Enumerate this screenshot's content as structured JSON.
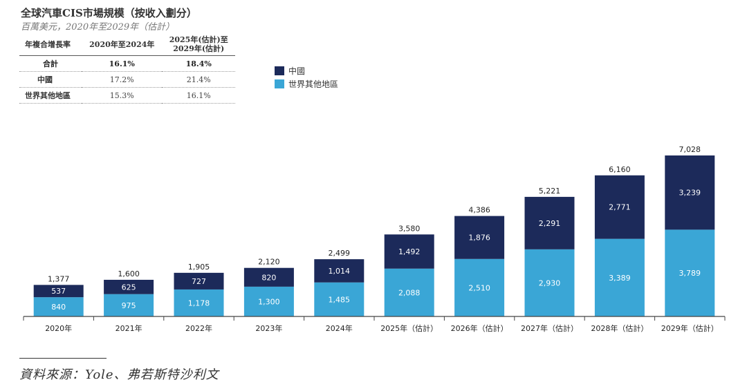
{
  "title": "全球汽車CIS市場規模（按收入劃分）",
  "subtitle": "百萬美元，2020年至2029年（估計）",
  "cagr_table": {
    "headers": [
      "年複合增長率",
      "2020年至2024年",
      "2025年(估計)至\n2029年(估計)"
    ],
    "rows": [
      {
        "label": "合計",
        "p1": "16.1%",
        "p2": "18.4%"
      },
      {
        "label": "中國",
        "p1": "17.2%",
        "p2": "21.4%"
      },
      {
        "label": "世界其他地區",
        "p1": "15.3%",
        "p2": "16.1%"
      }
    ]
  },
  "legend": [
    {
      "label": "中國",
      "color": "#1c2a5a"
    },
    {
      "label": "世界其他地區",
      "color": "#3aa6d6"
    }
  ],
  "source": "資料來源：Yole、弗若斯特沙利文",
  "chart_data": {
    "type": "bar",
    "stacked": true,
    "categories": [
      "2020年",
      "2021年",
      "2022年",
      "2023年",
      "2024年",
      "2025年（估計）",
      "2026年（估計）",
      "2027年（估計）",
      "2028年（估計）",
      "2029年（估計）"
    ],
    "series": [
      {
        "name": "世界其他地區",
        "color": "#3aa6d6",
        "values": [
          840,
          975,
          1178,
          1300,
          1485,
          2088,
          2510,
          2930,
          3389,
          3789
        ],
        "labels": [
          "840",
          "975",
          "1,178",
          "1,300",
          "1,485",
          "2,088",
          "2,510",
          "2,930",
          "3,389",
          "3,789"
        ]
      },
      {
        "name": "中國",
        "color": "#1c2a5a",
        "values": [
          537,
          625,
          727,
          820,
          1014,
          1492,
          1876,
          2291,
          2771,
          3239
        ],
        "labels": [
          "537",
          "625",
          "727",
          "820",
          "1,014",
          "1,492",
          "1,876",
          "2,291",
          "2,771",
          "3,239"
        ]
      }
    ],
    "totals": [
      1377,
      1600,
      1905,
      2120,
      2499,
      3580,
      4386,
      5221,
      6160,
      7028
    ],
    "total_labels": [
      "1,377",
      "1,600",
      "1,905",
      "2,120",
      "2,499",
      "3,580",
      "4,386",
      "5,221",
      "6,160",
      "7,028"
    ],
    "title": "全球汽車CIS市場規模（按收入劃分）",
    "ylabel": "百萬美元",
    "ylim": [
      0,
      7028
    ]
  }
}
